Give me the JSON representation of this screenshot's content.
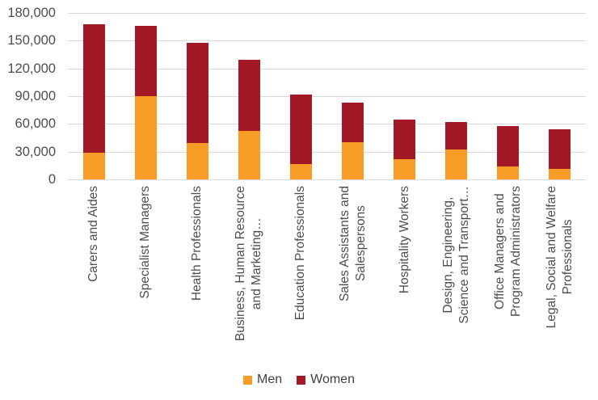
{
  "chart_data": {
    "type": "bar",
    "stacked": true,
    "title": "",
    "xlabel": "",
    "ylabel": "",
    "categories": [
      "Carers and Aides",
      "Specialist Managers",
      "Health Professionals",
      "Business, Human Resource\nand Marketing…",
      "Education Professionals",
      "Sales Assistants and\nSalespersons",
      "Hospitality Workers",
      "Design, Engineering,\nScience and Transport…",
      "Office Managers and\nProgram Administrators",
      "Legal, Social and Welfare\nProfessionals"
    ],
    "series": [
      {
        "name": "Men",
        "color": "#F79C27",
        "values": [
          29000,
          90000,
          39000,
          52000,
          17000,
          40000,
          22000,
          32000,
          14000,
          11000
        ]
      },
      {
        "name": "Women",
        "color": "#A21824",
        "values": [
          139000,
          76000,
          109000,
          77000,
          75000,
          43000,
          43000,
          30000,
          44000,
          43000
        ]
      }
    ],
    "ylim": [
      0,
      180000
    ],
    "ytick_interval": 30000,
    "ytick_labels": [
      "0",
      "30,000",
      "60,000",
      "90,000",
      "120,000",
      "150,000",
      "180,000"
    ],
    "grid": true,
    "legend_position": "bottom"
  },
  "colors": {
    "grid": "#D9D9D9",
    "axis_text": "#4D4D4D",
    "legend_text": "#404040",
    "background": "#FFFFFF"
  }
}
